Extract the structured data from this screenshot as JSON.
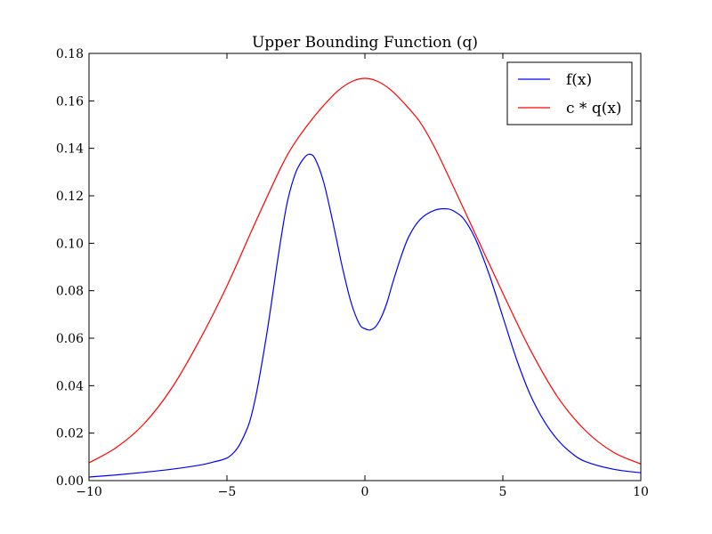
{
  "chart_data": {
    "type": "line",
    "title": "Upper Bounding Function (q)",
    "xlabel": "",
    "ylabel": "",
    "xlim": [
      -10,
      10
    ],
    "ylim": [
      0,
      0.18
    ],
    "xticks": [
      -10,
      -5,
      0,
      5,
      10
    ],
    "xtick_labels": [
      "−10",
      "−5",
      "0",
      "5",
      "10"
    ],
    "yticks": [
      0,
      0.02,
      0.04,
      0.06,
      0.08,
      0.1,
      0.12,
      0.14,
      0.16,
      0.18
    ],
    "ytick_labels": [
      "0.00",
      "0.02",
      "0.04",
      "0.06",
      "0.08",
      "0.10",
      "0.12",
      "0.14",
      "0.16",
      "0.18"
    ],
    "grid": false,
    "legend_position": "top-right",
    "series": [
      {
        "name": "f(x)",
        "color": "#0000ff",
        "x": [
          -10,
          -9,
          -8,
          -7,
          -6,
          -5.5,
          -5,
          -4.7,
          -4.5,
          -4.2,
          -4,
          -3.8,
          -3.5,
          -3.2,
          -3,
          -2.8,
          -2.5,
          -2.2,
          -2,
          -1.8,
          -1.5,
          -1.2,
          -1,
          -0.8,
          -0.5,
          -0.2,
          0,
          0.2,
          0.4,
          0.6,
          0.8,
          1,
          1.3,
          1.6,
          2,
          2.5,
          3,
          3.3,
          3.6,
          4,
          4.5,
          5,
          5.5,
          6,
          6.5,
          7,
          7.5,
          8,
          9,
          10
        ],
        "y": [
          0.0015,
          0.0024,
          0.0035,
          0.0048,
          0.0065,
          0.0078,
          0.0095,
          0.0125,
          0.016,
          0.024,
          0.033,
          0.045,
          0.066,
          0.09,
          0.105,
          0.118,
          0.13,
          0.136,
          0.1375,
          0.1355,
          0.126,
          0.111,
          0.1,
          0.089,
          0.075,
          0.066,
          0.064,
          0.0635,
          0.065,
          0.069,
          0.075,
          0.083,
          0.094,
          0.103,
          0.11,
          0.1138,
          0.1145,
          0.113,
          0.11,
          0.102,
          0.087,
          0.069,
          0.051,
          0.036,
          0.025,
          0.017,
          0.0115,
          0.008,
          0.0048,
          0.0033
        ]
      },
      {
        "name": "c * q(x)",
        "color": "#ff0000",
        "x": [
          -10,
          -9,
          -8,
          -7,
          -6,
          -5,
          -4,
          -3,
          -2.5,
          -2,
          -1.5,
          -1,
          -0.5,
          0,
          0.5,
          1,
          1.5,
          2,
          2.5,
          3,
          4,
          5,
          6,
          7,
          8,
          9,
          10
        ],
        "y": [
          0.0075,
          0.014,
          0.024,
          0.039,
          0.059,
          0.082,
          0.108,
          0.133,
          0.143,
          0.151,
          0.158,
          0.164,
          0.168,
          0.1695,
          0.168,
          0.164,
          0.158,
          0.151,
          0.141,
          0.129,
          0.104,
          0.079,
          0.055,
          0.035,
          0.021,
          0.012,
          0.007
        ]
      }
    ]
  }
}
